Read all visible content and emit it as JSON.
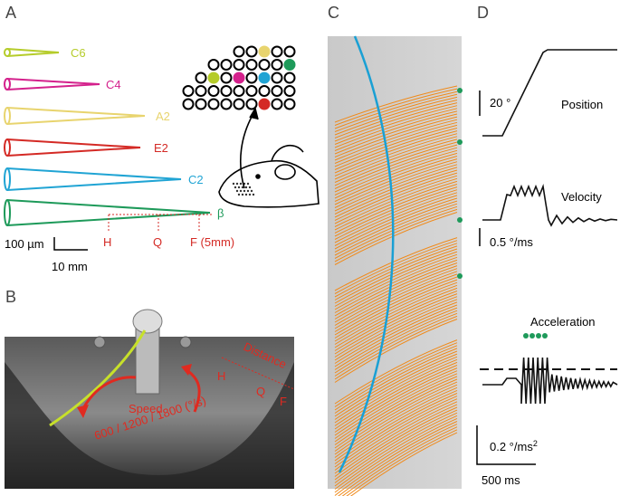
{
  "panels": {
    "a": {
      "label": "A",
      "whiskers": [
        "C6",
        "C4",
        "A2",
        "E2",
        "C2",
        "β"
      ],
      "distance_marks": [
        "H",
        "Q",
        "F (5mm)"
      ],
      "scale_bar": {
        "vertical": "100 µm",
        "horizontal": "10 mm"
      }
    },
    "b": {
      "label": "B",
      "speed": "Speed",
      "speed_values": "600 / 1200 / 1800 (°/s)",
      "distance": "Distance",
      "distance_marks": [
        "H",
        "Q",
        "F"
      ]
    },
    "c": {
      "label": "C"
    },
    "d": {
      "label": "D",
      "position": {
        "title": "Position",
        "scale": "20 °"
      },
      "velocity": {
        "title": "Velocity",
        "scale": "0.5 °/ms"
      },
      "acceleration": {
        "title": "Acceleration",
        "scale": "0.2 °/ms",
        "scale_exponent": "2"
      },
      "time_scale": "500 ms"
    }
  }
}
